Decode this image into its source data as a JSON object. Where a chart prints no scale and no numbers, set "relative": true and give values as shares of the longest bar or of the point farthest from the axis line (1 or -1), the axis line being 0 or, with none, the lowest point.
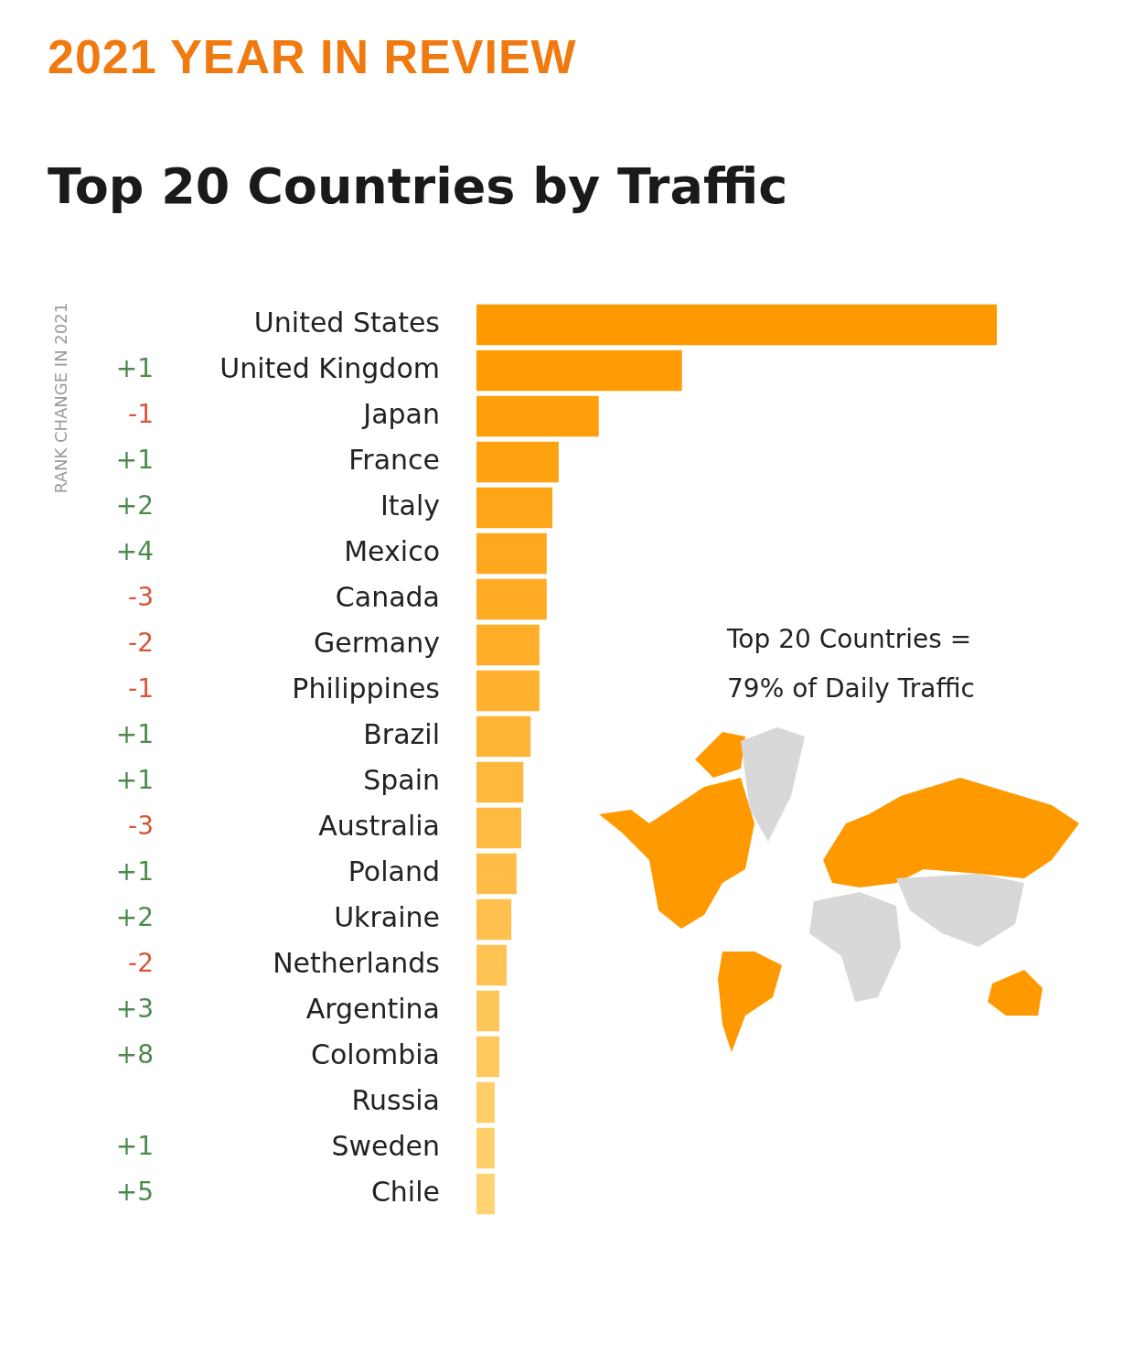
{
  "chart_data": {
    "type": "bar",
    "orientation": "horizontal",
    "relative": true,
    "subtitle": "2021 YEAR IN REVIEW",
    "title": "Top 20 Countries by Traffic",
    "categories": [
      "United States",
      "United Kingdom",
      "Japan",
      "France",
      "Italy",
      "Mexico",
      "Canada",
      "Germany",
      "Philippines",
      "Brazil",
      "Spain",
      "Australia",
      "Poland",
      "Ukraine",
      "Netherlands",
      "Argentina",
      "Colombia",
      "Russia",
      "Sweden",
      "Chile"
    ],
    "values": [
      1,
      0.395,
      0.235,
      0.158,
      0.146,
      0.135,
      0.135,
      0.121,
      0.121,
      0.104,
      0.09,
      0.086,
      0.077,
      0.067,
      0.058,
      0.044,
      0.044,
      0.035,
      0.035,
      0.035
    ],
    "colors": [
      "#ff9900",
      "#ff9c06",
      "#ff9f0c",
      "#ffa212",
      "#ffa518",
      "#ffa81e",
      "#ffab24",
      "#ffae2a",
      "#ffb130",
      "#ffb436",
      "#ffb73c",
      "#ffba42",
      "#ffbd48",
      "#ffc04e",
      "#ffc354",
      "#ffc65a",
      "#ffc960",
      "#ffcc66",
      "#ffcf6c",
      "#ffd272"
    ],
    "annotations": [
      "RANK CHANGE IN 2021",
      "+1",
      "-1",
      "+1",
      "+2",
      "+4",
      "-3",
      "-2",
      "-1",
      "+1",
      "+1",
      "-3",
      "+1",
      "+2",
      "-2",
      "+3",
      "+8",
      "+1",
      "+5",
      "Top 20 Countries =\n79% of Daily Traffic"
    ]
  }
}
